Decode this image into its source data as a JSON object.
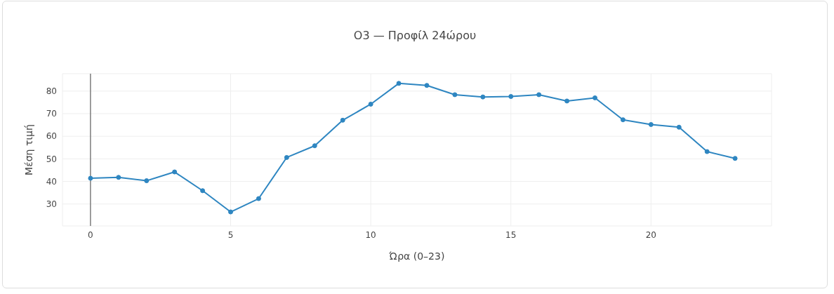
{
  "chart_data": {
    "type": "line",
    "title": "O3 — Προφίλ 24ώρου",
    "xlabel": "Ώρα (0–23)",
    "ylabel": "Μέση τιμή",
    "x": [
      0,
      1,
      2,
      3,
      4,
      5,
      6,
      7,
      8,
      9,
      10,
      11,
      12,
      13,
      14,
      15,
      16,
      17,
      18,
      19,
      20,
      21,
      22,
      23
    ],
    "series": [
      {
        "color": "#2e86c1",
        "values": [
          41.4,
          41.8,
          40.3,
          44.2,
          35.9,
          26.5,
          32.4,
          50.6,
          55.8,
          67.1,
          74.2,
          83.4,
          82.5,
          78.4,
          77.4,
          77.6,
          78.4,
          75.6,
          77.0,
          67.3,
          65.2,
          64.0,
          53.2,
          50.2
        ]
      }
    ],
    "xlim": [
      -1,
      24.3
    ],
    "xticks": [
      0,
      5,
      10,
      15,
      20
    ],
    "ylim": [
      20.3,
      87.7
    ],
    "yticks": [
      30,
      40,
      50,
      60,
      70,
      80
    ],
    "ref_lines": [
      {
        "axis": "x",
        "value": 0,
        "color": "#444444"
      }
    ],
    "grid": true,
    "marker": "circle",
    "line_style": "solid",
    "legend": false
  }
}
